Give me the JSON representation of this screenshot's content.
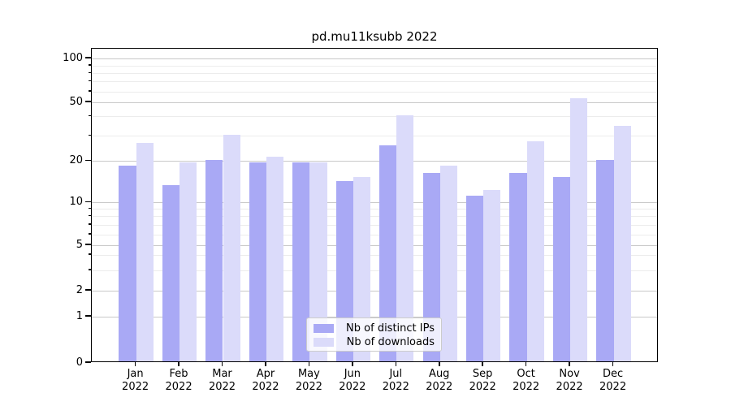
{
  "chart_data": {
    "type": "bar",
    "title": "pd.mu11ksubb 2022",
    "yscale": "symlog",
    "grid": "horizontal major and minor gridlines",
    "legend_position": "lower center",
    "categories": [
      "Jan 2022",
      "Feb 2022",
      "Mar 2022",
      "Apr 2022",
      "May 2022",
      "Jun 2022",
      "Jul 2022",
      "Aug 2022",
      "Sep 2022",
      "Oct 2022",
      "Nov 2022",
      "Dec 2022"
    ],
    "x_tick_labels": [
      {
        "month": "Jan",
        "year": "2022"
      },
      {
        "month": "Feb",
        "year": "2022"
      },
      {
        "month": "Mar",
        "year": "2022"
      },
      {
        "month": "Apr",
        "year": "2022"
      },
      {
        "month": "May",
        "year": "2022"
      },
      {
        "month": "Jun",
        "year": "2022"
      },
      {
        "month": "Jul",
        "year": "2022"
      },
      {
        "month": "Aug",
        "year": "2022"
      },
      {
        "month": "Sep",
        "year": "2022"
      },
      {
        "month": "Oct",
        "year": "2022"
      },
      {
        "month": "Nov",
        "year": "2022"
      },
      {
        "month": "Dec",
        "year": "2022"
      }
    ],
    "series": [
      {
        "name": "Nb of distinct IPs",
        "color": "#a9a9f5",
        "values": [
          18,
          13,
          20,
          19,
          19,
          14,
          25,
          16,
          11,
          16,
          15,
          20
        ]
      },
      {
        "name": "Nb of downloads",
        "color": "#dbdbfa",
        "values": [
          26,
          19,
          30,
          21,
          19,
          15,
          40,
          18,
          12,
          27,
          52,
          34
        ]
      }
    ],
    "y_axis": {
      "major_tick_labels": [
        "100",
        "50",
        "20",
        "10",
        "5",
        "2",
        "1",
        "0"
      ],
      "major_tick_values": [
        100,
        50,
        20,
        10,
        5,
        2,
        1,
        0
      ],
      "minor_tick_values": [
        90,
        80,
        70,
        60,
        40,
        30,
        9,
        8,
        7,
        6,
        4,
        3
      ],
      "ylim": [
        0,
        120
      ]
    },
    "colors": {
      "major_grid": "#c9c9c9",
      "minor_grid": "#ececec",
      "axis": "#000000",
      "legend_border": "#cccccc"
    }
  }
}
